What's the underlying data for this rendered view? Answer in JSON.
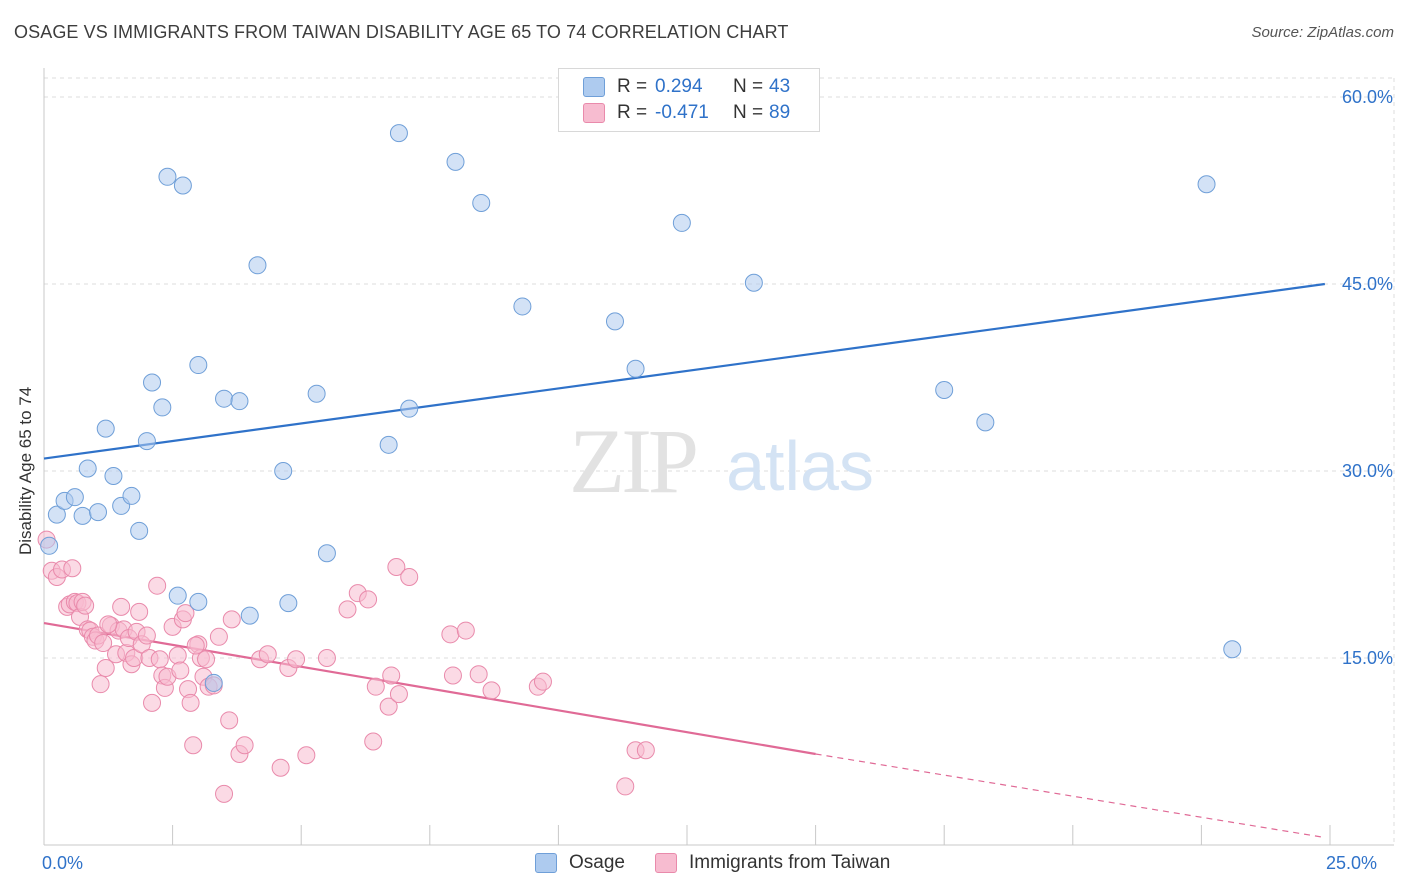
{
  "title": "OSAGE VS IMMIGRANTS FROM TAIWAN DISABILITY AGE 65 TO 74 CORRELATION CHART",
  "source": "Source: ZipAtlas.com",
  "watermark": {
    "zip": "ZIP",
    "atlas": "atlas"
  },
  "legend_top": [
    {
      "r_label": "R =",
      "r_value": "0.294",
      "n_label": "N =",
      "n_value": "43"
    },
    {
      "r_label": "R =",
      "r_value": "-0.471",
      "n_label": "N =",
      "n_value": "89"
    }
  ],
  "legend_bottom": [
    "Osage",
    "Immigrants from Taiwan"
  ],
  "colors": {
    "osage_fill": "#aecbef",
    "osage_stroke": "#6f9fd8",
    "osage_line": "#2f72c9",
    "taiwan_fill": "#f7bcd0",
    "taiwan_stroke": "#e98aab",
    "taiwan_line": "#e06a96",
    "tick_label": "#2f72c9",
    "grid": "#dddddd"
  },
  "chart_data": {
    "type": "scatter",
    "title": "OSAGE VS IMMIGRANTS FROM TAIWAN DISABILITY AGE 65 TO 74 CORRELATION CHART",
    "xlabel": "",
    "ylabel": "Disability Age 65 to 74",
    "xlim": [
      0,
      25
    ],
    "ylim": [
      0,
      60
    ],
    "x_tick_labels": [
      "0.0%",
      "25.0%"
    ],
    "y_ticks": [
      15,
      30,
      45,
      60
    ],
    "y_tick_labels": [
      "15.0%",
      "30.0%",
      "45.0%",
      "60.0%"
    ],
    "grid": true,
    "legend_position": "top-center",
    "series": [
      {
        "name": "Osage",
        "r": 0.294,
        "n": 43,
        "trend": {
          "x": [
            0,
            24.9
          ],
          "y": [
            31.0,
            45.0
          ]
        },
        "points": [
          [
            0.1,
            24.0
          ],
          [
            0.25,
            26.5
          ],
          [
            0.4,
            27.6
          ],
          [
            0.6,
            27.9
          ],
          [
            0.75,
            26.4
          ],
          [
            0.85,
            30.2
          ],
          [
            1.05,
            26.7
          ],
          [
            1.2,
            33.4
          ],
          [
            1.35,
            29.6
          ],
          [
            1.5,
            27.2
          ],
          [
            1.7,
            28.0
          ],
          [
            1.85,
            25.2
          ],
          [
            2.0,
            32.4
          ],
          [
            2.1,
            37.1
          ],
          [
            2.3,
            35.1
          ],
          [
            2.4,
            53.6
          ],
          [
            2.6,
            20.0
          ],
          [
            2.7,
            52.9
          ],
          [
            3.0,
            38.5
          ],
          [
            3.0,
            19.5
          ],
          [
            3.3,
            13.0
          ],
          [
            3.5,
            35.8
          ],
          [
            3.8,
            35.6
          ],
          [
            4.0,
            18.4
          ],
          [
            4.15,
            46.5
          ],
          [
            4.65,
            30.0
          ],
          [
            4.75,
            19.4
          ],
          [
            5.3,
            36.2
          ],
          [
            5.5,
            23.4
          ],
          [
            6.7,
            32.1
          ],
          [
            6.9,
            57.1
          ],
          [
            7.1,
            35.0
          ],
          [
            8.0,
            54.8
          ],
          [
            8.5,
            51.5
          ],
          [
            9.3,
            43.2
          ],
          [
            11.1,
            42.0
          ],
          [
            11.5,
            38.2
          ],
          [
            12.4,
            49.9
          ],
          [
            13.8,
            45.1
          ],
          [
            17.5,
            36.5
          ],
          [
            18.3,
            33.9
          ],
          [
            22.6,
            53.0
          ],
          [
            23.1,
            15.7
          ]
        ]
      },
      {
        "name": "Immigrants from Taiwan",
        "r": -0.471,
        "n": 89,
        "trend": {
          "x": [
            0,
            15.0
          ],
          "y": [
            17.8,
            7.3
          ]
        },
        "trend_dashed": {
          "x": [
            15.0,
            24.9
          ],
          "y": [
            7.3,
            0.6
          ]
        },
        "points": [
          [
            0.05,
            24.5
          ],
          [
            0.15,
            22.0
          ],
          [
            0.25,
            21.5
          ],
          [
            0.35,
            22.1
          ],
          [
            0.45,
            19.1
          ],
          [
            0.5,
            19.3
          ],
          [
            0.6,
            19.5
          ],
          [
            0.65,
            19.4
          ],
          [
            0.7,
            18.3
          ],
          [
            0.75,
            19.5
          ],
          [
            0.8,
            19.2
          ],
          [
            0.85,
            17.3
          ],
          [
            0.9,
            17.2
          ],
          [
            0.95,
            16.7
          ],
          [
            1.0,
            16.4
          ],
          [
            1.05,
            16.8
          ],
          [
            1.1,
            12.9
          ],
          [
            1.15,
            16.2
          ],
          [
            1.2,
            14.2
          ],
          [
            1.3,
            17.6
          ],
          [
            1.4,
            15.3
          ],
          [
            1.45,
            17.2
          ],
          [
            1.5,
            19.1
          ],
          [
            1.55,
            17.3
          ],
          [
            1.6,
            15.4
          ],
          [
            1.65,
            16.6
          ],
          [
            1.7,
            14.5
          ],
          [
            1.75,
            15.0
          ],
          [
            1.8,
            17.1
          ],
          [
            1.85,
            18.7
          ],
          [
            1.9,
            16.1
          ],
          [
            2.0,
            16.8
          ],
          [
            2.05,
            15.0
          ],
          [
            2.1,
            11.4
          ],
          [
            2.2,
            20.8
          ],
          [
            2.25,
            14.9
          ],
          [
            2.3,
            13.6
          ],
          [
            2.35,
            12.6
          ],
          [
            2.4,
            13.5
          ],
          [
            2.5,
            17.5
          ],
          [
            2.6,
            15.2
          ],
          [
            2.65,
            14.0
          ],
          [
            2.7,
            18.1
          ],
          [
            2.75,
            18.6
          ],
          [
            2.8,
            12.5
          ],
          [
            2.85,
            11.4
          ],
          [
            2.9,
            8.0
          ],
          [
            3.0,
            16.1
          ],
          [
            3.05,
            15.0
          ],
          [
            3.1,
            13.5
          ],
          [
            3.15,
            14.9
          ],
          [
            3.2,
            12.7
          ],
          [
            3.3,
            12.8
          ],
          [
            3.4,
            16.7
          ],
          [
            3.5,
            4.1
          ],
          [
            3.6,
            10.0
          ],
          [
            3.65,
            18.1
          ],
          [
            3.8,
            7.3
          ],
          [
            3.9,
            8.0
          ],
          [
            4.2,
            14.9
          ],
          [
            4.35,
            15.3
          ],
          [
            4.6,
            6.2
          ],
          [
            4.75,
            14.2
          ],
          [
            4.9,
            14.9
          ],
          [
            5.1,
            7.2
          ],
          [
            5.5,
            15.0
          ],
          [
            5.9,
            18.9
          ],
          [
            6.1,
            20.2
          ],
          [
            6.3,
            19.7
          ],
          [
            6.4,
            8.3
          ],
          [
            6.45,
            12.7
          ],
          [
            6.7,
            11.1
          ],
          [
            6.75,
            13.6
          ],
          [
            6.85,
            22.3
          ],
          [
            6.9,
            12.1
          ],
          [
            7.1,
            21.5
          ],
          [
            7.9,
            16.9
          ],
          [
            7.95,
            13.6
          ],
          [
            8.2,
            17.2
          ],
          [
            8.45,
            13.7
          ],
          [
            8.7,
            12.4
          ],
          [
            9.6,
            12.7
          ],
          [
            9.7,
            13.1
          ],
          [
            11.3,
            4.7
          ],
          [
            11.5,
            7.6
          ],
          [
            11.7,
            7.6
          ],
          [
            2.95,
            16.0
          ],
          [
            1.25,
            17.7
          ],
          [
            0.55,
            22.2
          ]
        ]
      }
    ]
  }
}
